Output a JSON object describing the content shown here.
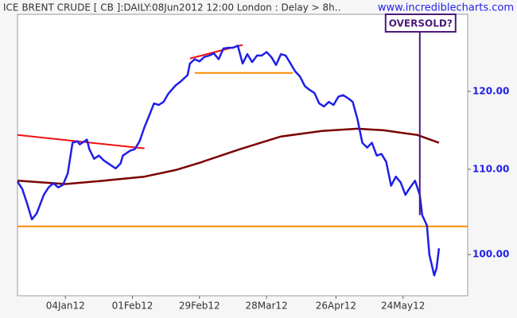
{
  "chart_data": {
    "type": "line",
    "title": "ICE BRENT CRUDE [ CB ]:DAILY:08Jun2012 12:00 London : Delay > 8h..",
    "watermark": "www.incrediblecharts.com",
    "log_scale": true,
    "x": [
      "2011-12-15",
      "2011-12-17",
      "2011-12-19",
      "2011-12-21",
      "2011-12-23",
      "2011-12-26",
      "2011-12-28",
      "2011-12-30",
      "2012-01-01",
      "2012-01-03",
      "2012-01-05",
      "2012-01-07",
      "2012-01-09",
      "2012-01-10",
      "2012-01-13",
      "2012-01-14",
      "2012-01-16",
      "2012-01-18",
      "2012-01-20",
      "2012-01-22",
      "2012-01-25",
      "2012-01-27",
      "2012-01-28",
      "2012-01-31",
      "2012-02-02",
      "2012-02-04",
      "2012-02-06",
      "2012-02-08",
      "2012-02-10",
      "2012-02-12",
      "2012-02-14",
      "2012-02-16",
      "2012-02-19",
      "2012-02-21",
      "2012-02-24",
      "2012-02-25",
      "2012-02-27",
      "2012-02-29",
      "2012-03-02",
      "2012-03-04",
      "2012-03-06",
      "2012-03-08",
      "2012-03-10",
      "2012-03-12",
      "2012-03-14",
      "2012-03-16",
      "2012-03-18",
      "2012-03-20",
      "2012-03-22",
      "2012-03-24",
      "2012-03-26",
      "2012-03-28",
      "2012-03-30",
      "2012-04-01",
      "2012-04-03",
      "2012-04-05",
      "2012-04-07",
      "2012-04-09",
      "2012-04-11",
      "2012-04-13",
      "2012-04-15",
      "2012-04-17",
      "2012-04-19",
      "2012-04-21",
      "2012-04-23",
      "2012-04-25",
      "2012-04-27",
      "2012-04-29",
      "2012-05-01",
      "2012-05-03",
      "2012-05-05",
      "2012-05-07",
      "2012-05-09",
      "2012-05-11",
      "2012-05-13",
      "2012-05-15",
      "2012-05-17",
      "2012-05-19",
      "2012-05-21",
      "2012-05-23",
      "2012-05-25",
      "2012-05-27",
      "2012-05-29",
      "2012-05-31",
      "2012-06-01",
      "2012-06-03",
      "2012-06-04",
      "2012-06-06",
      "2012-06-07",
      "2012-06-08"
    ],
    "series": [
      {
        "color": "#1f1fe8",
        "values": [
          108.5,
          107.6,
          105.9,
          104.0,
          104.7,
          106.9,
          107.8,
          108.3,
          107.8,
          108.1,
          109.5,
          113.3,
          113.5,
          113.1,
          113.7,
          112.5,
          111.3,
          111.7,
          111.1,
          110.7,
          110.1,
          110.7,
          111.7,
          112.3,
          112.5,
          113.5,
          115.3,
          116.8,
          118.4,
          118.2,
          118.6,
          119.7,
          120.8,
          121.3,
          122.2,
          123.8,
          124.4,
          124.1,
          124.7,
          124.9,
          125.2,
          124.4,
          125.9,
          126.0,
          126.0,
          126.3,
          123.8,
          125.1,
          124.0,
          124.9,
          124.9,
          125.4,
          124.7,
          123.6,
          125.1,
          124.9,
          123.8,
          122.7,
          122.0,
          120.7,
          120.2,
          119.8,
          118.4,
          118.0,
          118.6,
          118.2,
          119.3,
          119.5,
          119.1,
          118.6,
          116.3,
          113.3,
          112.7,
          113.3,
          111.7,
          111.9,
          110.9,
          108.0,
          109.1,
          108.4,
          106.9,
          107.8,
          108.6,
          106.9,
          104.5,
          103.3,
          100.0,
          97.7,
          98.5,
          100.7
        ]
      }
    ],
    "moving_average": {
      "color": "#7a0000",
      "x": [
        "2011-12-15",
        "2012-01-04",
        "2012-01-20",
        "2012-02-06",
        "2012-02-19",
        "2012-02-29",
        "2012-03-17",
        "2012-04-03",
        "2012-04-20",
        "2012-05-05",
        "2012-05-16",
        "2012-05-30",
        "2012-06-08"
      ],
      "values": [
        108.6,
        108.2,
        108.6,
        109.1,
        109.9,
        110.8,
        112.5,
        114.1,
        114.8,
        115.1,
        114.9,
        114.3,
        113.3
      ]
    },
    "lines": [
      {
        "color": "#ee1111",
        "x": [
          "2011-12-15",
          "2012-02-06"
        ],
        "values": [
          114.3,
          112.6
        ]
      },
      {
        "color": "#ee1111",
        "x": [
          "2012-02-25",
          "2012-03-18"
        ],
        "values": [
          124.5,
          126.4
        ]
      },
      {
        "color": "#ff8c00",
        "x": [
          "2012-02-27",
          "2012-04-08"
        ],
        "values": [
          122.5,
          122.5
        ]
      },
      {
        "color": "#ff8c00",
        "x": [
          "2011-12-15",
          "2012-06-20"
        ],
        "values": [
          103.2,
          103.2
        ]
      }
    ],
    "annotation": {
      "text": "OVERSOLD?",
      "color": "#4b1a7a",
      "x": "2012-05-31",
      "y": 104.5
    },
    "xlim": [
      "2011-12-15",
      "2012-06-20"
    ],
    "xticks": [
      {
        "value": "2012-01-04",
        "label": "04Jan12"
      },
      {
        "value": "2012-02-01",
        "label": "01Feb12"
      },
      {
        "value": "2012-02-29",
        "label": "29Feb12"
      },
      {
        "value": "2012-03-28",
        "label": "28Mar12"
      },
      {
        "value": "2012-04-26",
        "label": "26Apr12"
      },
      {
        "value": "2012-05-24",
        "label": "24May12"
      }
    ],
    "ylim": [
      95.5,
      130.8
    ],
    "yticks": [
      {
        "value": 100,
        "label": "100.00"
      },
      {
        "value": 110,
        "label": "110.00"
      },
      {
        "value": 120,
        "label": "120.00"
      }
    ]
  }
}
